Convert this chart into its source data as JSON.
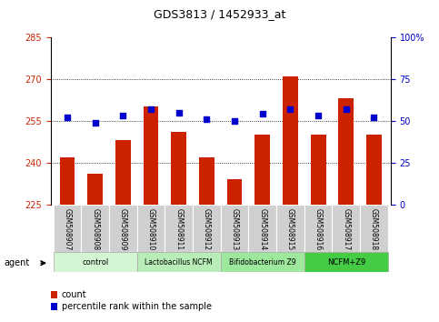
{
  "title": "GDS3813 / 1452933_at",
  "samples": [
    "GSM508907",
    "GSM508908",
    "GSM508909",
    "GSM508910",
    "GSM508911",
    "GSM508912",
    "GSM508913",
    "GSM508914",
    "GSM508915",
    "GSM508916",
    "GSM508917",
    "GSM508918"
  ],
  "counts": [
    242,
    236,
    248,
    260,
    251,
    242,
    234,
    250,
    271,
    250,
    263,
    250
  ],
  "percentiles": [
    52,
    49,
    53,
    57,
    55,
    51,
    50,
    54,
    57,
    53,
    57,
    52
  ],
  "ylim_left": [
    225,
    285
  ],
  "ylim_right": [
    0,
    100
  ],
  "yticks_left": [
    225,
    240,
    255,
    270,
    285
  ],
  "yticks_right": [
    0,
    25,
    50,
    75,
    100
  ],
  "ytick_labels_right": [
    "0",
    "25",
    "50",
    "75",
    "100%"
  ],
  "groups": [
    {
      "label": "control",
      "indices": [
        0,
        1,
        2
      ],
      "color": "#d4f5d4"
    },
    {
      "label": "Lactobacillus NCFM",
      "indices": [
        3,
        4,
        5
      ],
      "color": "#b8edb8"
    },
    {
      "label": "Bifidobacterium Z9",
      "indices": [
        6,
        7,
        8
      ],
      "color": "#9de89d"
    },
    {
      "label": "NCFM+Z9",
      "indices": [
        9,
        10,
        11
      ],
      "color": "#44cc44"
    }
  ],
  "bar_color": "#cc2200",
  "dot_color": "#0000cc",
  "agent_label": "agent",
  "legend_count_label": "count",
  "legend_pct_label": "percentile rank within the sample",
  "samp_bg": "#d0d0d0",
  "plot_bg": "#ffffff"
}
